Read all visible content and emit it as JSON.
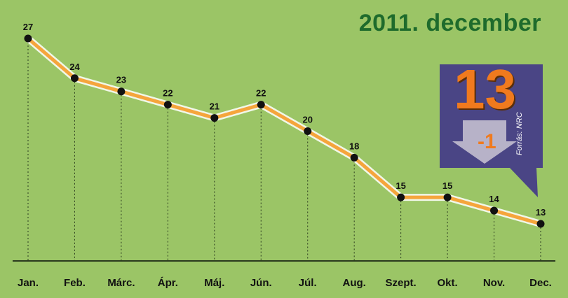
{
  "title": "2011. december",
  "chart_data": {
    "type": "line",
    "categories": [
      "Jan.",
      "Feb.",
      "Márc.",
      "Ápr.",
      "Máj.",
      "Jún.",
      "Júl.",
      "Aug.",
      "Szept.",
      "Okt.",
      "Nov.",
      "Dec."
    ],
    "values": [
      27,
      24,
      23,
      22,
      21,
      22,
      20,
      18,
      15,
      15,
      14,
      13
    ],
    "data_labels": [
      "27",
      "24",
      "23",
      "22",
      "21",
      "22",
      "20",
      "18",
      "15",
      "15",
      "14",
      "13"
    ],
    "ylim": [
      10,
      28
    ],
    "grid": "vertical dotted drop lines",
    "legend": "none"
  },
  "callout": {
    "value": "13",
    "change": "-1",
    "source": "Forrás: NRC"
  },
  "colors": {
    "background": "#9bc566",
    "title": "#1e6b2c",
    "line_glow": "#ffffff",
    "line": "#f5a53c",
    "callout_bg": "#4a4585",
    "callout_number": "#f07a1e",
    "arrow": "#b7b2c8"
  }
}
